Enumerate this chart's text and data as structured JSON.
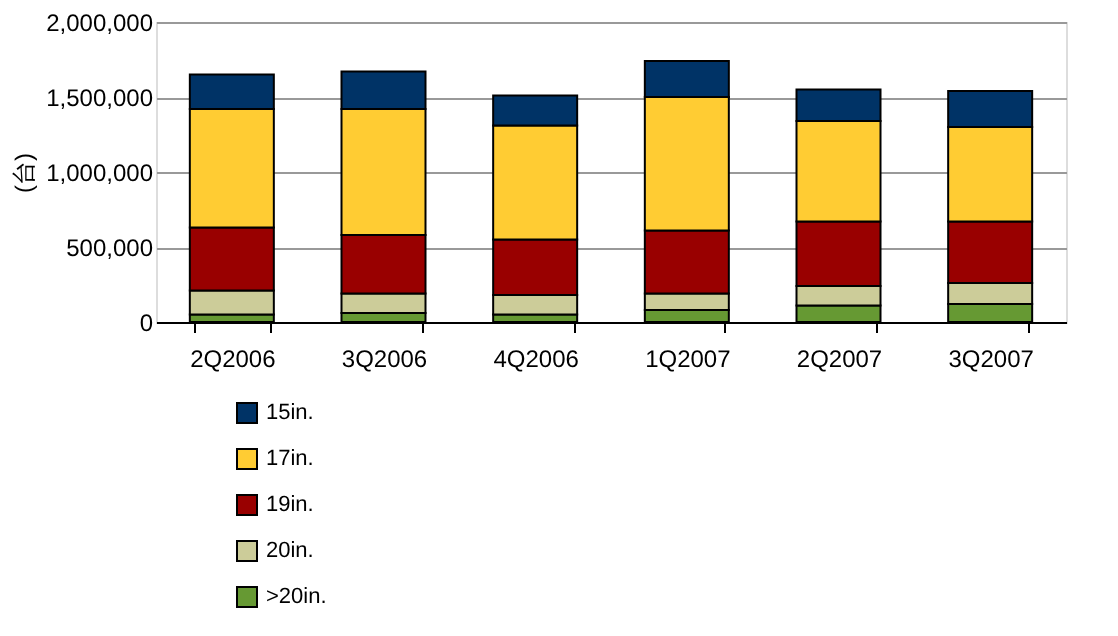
{
  "chart_data": {
    "type": "bar",
    "stacked": true,
    "ylabel": "(台)",
    "categories": [
      "2Q2006",
      "3Q2006",
      "4Q2006",
      "1Q2007",
      "2Q2007",
      "3Q2007"
    ],
    "series": [
      {
        "name": ">20in.",
        "color": "#669933",
        "values": [
          50000,
          60000,
          50000,
          80000,
          110000,
          120000
        ]
      },
      {
        "name": "20in.",
        "color": "#cccc99",
        "values": [
          160000,
          130000,
          130000,
          110000,
          130000,
          140000
        ]
      },
      {
        "name": "19in.",
        "color": "#990000",
        "values": [
          420000,
          390000,
          370000,
          420000,
          430000,
          410000
        ]
      },
      {
        "name": "17in.",
        "color": "#ffcc33",
        "values": [
          790000,
          840000,
          760000,
          890000,
          670000,
          630000
        ]
      },
      {
        "name": "15in.",
        "color": "#003366",
        "values": [
          230000,
          250000,
          200000,
          240000,
          210000,
          240000
        ]
      }
    ],
    "ylim": [
      0,
      2000000
    ],
    "yticks": [
      0,
      {
        "value": 500000,
        "label": "500,000"
      },
      {
        "value": 1000000,
        "label": "1,000,000"
      },
      {
        "value": 1500000,
        "label": "1,500,000"
      },
      {
        "value": 2000000,
        "label": "2,000,000"
      }
    ],
    "grid": "y",
    "legend": "bottom left"
  }
}
